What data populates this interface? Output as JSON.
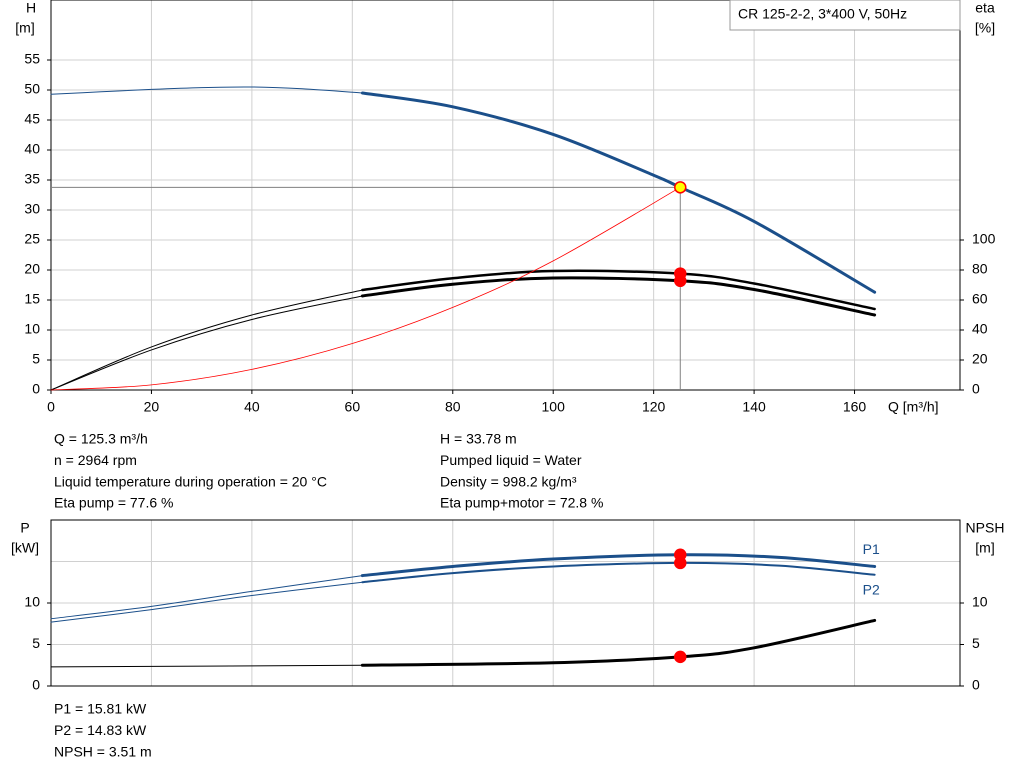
{
  "chart_data": [
    {
      "type": "line",
      "title": "CR 125-2-2, 3*400 V, 50Hz",
      "ylabel": [
        "H",
        "[m]"
      ],
      "y2label": [
        "eta",
        "[%]"
      ],
      "xlabel": "Q [m³/h]",
      "xlim": [
        0,
        181
      ],
      "ylim": [
        0,
        65
      ],
      "y2lim": [
        0,
        260
      ],
      "xticks": [
        0,
        20,
        40,
        60,
        80,
        100,
        120,
        140,
        160
      ],
      "yticks": [
        0,
        5,
        10,
        15,
        20,
        25,
        30,
        35,
        40,
        45,
        50,
        55
      ],
      "y2ticks": [
        0,
        20,
        40,
        60,
        80,
        100
      ],
      "grid": true,
      "guide_color": "#808080",
      "series": [
        {
          "color": "#1b4f8a",
          "segments": [
            {
              "x": [
                0,
                10,
                20,
                30,
                40,
                50,
                62
              ],
              "values": [
                49.3,
                49.7,
                50.1,
                50.4,
                50.5,
                50.2,
                49.5
              ],
              "width": 1
            },
            {
              "x": [
                62,
                80,
                100,
                120,
                125.3,
                140,
                164
              ],
              "values": [
                49.5,
                47.2,
                42.6,
                35.8,
                33.78,
                28.1,
                16.3
              ],
              "width": 3
            }
          ],
          "points": [
            {
              "x": 125.3,
              "value": 33.78,
              "fill": "#ffff00",
              "stroke": "#ff0000",
              "guide": true
            }
          ]
        },
        {
          "color": "#000000",
          "axis": "y2",
          "segments": [
            {
              "x": [
                0,
                20,
                40,
                62
              ],
              "values": [
                0,
                28.7,
                50,
                66.7
              ],
              "width": 1
            },
            {
              "x": [
                62,
                80,
                100,
                125.3,
                140,
                164
              ],
              "values": [
                66.7,
                74.5,
                79.3,
                77.6,
                71,
                54
              ],
              "width": 2.5
            }
          ],
          "points": [
            {
              "x": 125.3,
              "value": 77.6,
              "fill": "#ff0000",
              "stroke": "#ff0000"
            }
          ]
        },
        {
          "color": "#000000",
          "axis": "y2",
          "segments": [
            {
              "x": [
                0,
                20,
                40,
                62
              ],
              "values": [
                0,
                26.7,
                47,
                62.7
              ],
              "width": 1
            },
            {
              "x": [
                62,
                80,
                100,
                125.3,
                140,
                164
              ],
              "values": [
                62.7,
                70.5,
                74.7,
                72.8,
                67,
                50
              ],
              "width": 3
            }
          ],
          "points": [
            {
              "x": 125.3,
              "value": 72.8,
              "fill": "#ff0000",
              "stroke": "#ff0000"
            }
          ]
        },
        {
          "color": "#ff0000",
          "segments": [
            {
              "x": [
                0,
                20,
                40,
                60,
                80,
                100,
                125.3
              ],
              "values": [
                0,
                0.86,
                3.44,
                7.75,
                13.77,
                21.52,
                33.78
              ],
              "width": 0.8
            }
          ]
        }
      ]
    },
    {
      "type": "line",
      "ylabel": [
        "P",
        "[kW]"
      ],
      "y2label": [
        "NPSH",
        "[m]"
      ],
      "xlim": [
        0,
        181
      ],
      "ylim": [
        0,
        20
      ],
      "y2lim": [
        0,
        20
      ],
      "yticks": [
        0,
        5,
        10
      ],
      "y2ticks": [
        0,
        5,
        10
      ],
      "ygrid": [
        5,
        10,
        15
      ],
      "grid": true,
      "series": [
        {
          "name": "P1",
          "color": "#1b4f8a",
          "segments": [
            {
              "x": [
                0,
                20,
                40,
                62
              ],
              "values": [
                8.1,
                9.6,
                11.4,
                13.3
              ],
              "width": 1
            },
            {
              "x": [
                62,
                80,
                100,
                125.3,
                145,
                164
              ],
              "values": [
                13.3,
                14.4,
                15.3,
                15.81,
                15.5,
                14.4
              ],
              "width": 3
            }
          ],
          "points": [
            {
              "x": 125.3,
              "value": 15.81,
              "fill": "#ff0000",
              "stroke": "#ff0000"
            }
          ]
        },
        {
          "name": "P2",
          "color": "#1b4f8a",
          "segments": [
            {
              "x": [
                0,
                20,
                40,
                62
              ],
              "values": [
                7.7,
                9.2,
                10.9,
                12.5
              ],
              "width": 1
            },
            {
              "x": [
                62,
                80,
                100,
                125.3,
                145,
                164
              ],
              "values": [
                12.5,
                13.6,
                14.4,
                14.83,
                14.5,
                13.4
              ],
              "width": 2
            }
          ],
          "points": [
            {
              "x": 125.3,
              "value": 14.83,
              "fill": "#ff0000",
              "stroke": "#ff0000"
            }
          ]
        },
        {
          "color": "#000000",
          "axis": "y2",
          "segments": [
            {
              "x": [
                0,
                62
              ],
              "values": [
                2.3,
                2.5
              ],
              "width": 1
            },
            {
              "x": [
                62,
                100,
                125.3,
                140,
                164
              ],
              "values": [
                2.5,
                2.8,
                3.51,
                4.6,
                7.9
              ],
              "width": 3
            }
          ],
          "points": [
            {
              "x": 125.3,
              "value": 3.51,
              "fill": "#ff0000",
              "stroke": "#ff0000"
            }
          ]
        }
      ]
    }
  ],
  "info": {
    "left": [
      "Q = 125.3 m³/h",
      "n = 2964 rpm",
      "Liquid temperature during operation = 20 °C",
      "Eta pump = 77.6 %"
    ],
    "right": [
      "H = 33.78 m",
      "Pumped liquid = Water",
      "Density = 998.2 kg/m³",
      "Eta pump+motor = 72.8 %"
    ],
    "power": [
      "P1 = 15.81 kW",
      "P2 = 14.83 kW",
      "NPSH = 3.51 m"
    ]
  }
}
